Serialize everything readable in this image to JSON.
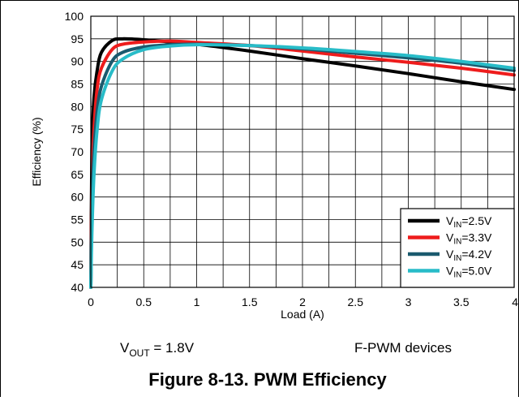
{
  "chart_data": {
    "type": "line",
    "xlabel": "Load (A)",
    "ylabel": "Efficiency (%)",
    "xlim": [
      0,
      4
    ],
    "ylim": [
      40,
      100
    ],
    "x_ticks": [
      "0",
      "0.5",
      "1",
      "1.5",
      "2",
      "2.5",
      "3",
      "3.5",
      "4"
    ],
    "y_ticks": [
      "40",
      "45",
      "50",
      "55",
      "60",
      "65",
      "70",
      "75",
      "80",
      "85",
      "90",
      "95",
      "100"
    ],
    "grid": true,
    "legend_position": "bottom-right",
    "series": [
      {
        "name": "VIN=2.5V",
        "sub": "IN",
        "value_label": "=2.5V",
        "color": "#000000",
        "points": [
          [
            0.0,
            40
          ],
          [
            0.01,
            70
          ],
          [
            0.03,
            82
          ],
          [
            0.06,
            88
          ],
          [
            0.1,
            92
          ],
          [
            0.2,
            94.6
          ],
          [
            0.3,
            95.0
          ],
          [
            0.5,
            94.8
          ],
          [
            0.75,
            94.3
          ],
          [
            1.0,
            93.8
          ],
          [
            1.5,
            92.3
          ],
          [
            2.0,
            90.6
          ],
          [
            2.5,
            89.0
          ],
          [
            3.0,
            87.3
          ],
          [
            3.5,
            85.5
          ],
          [
            4.0,
            83.8
          ]
        ]
      },
      {
        "name": "VIN=3.3V",
        "sub": "IN",
        "value_label": "=3.3V",
        "color": "#ee1c1c",
        "points": [
          [
            0.0,
            40
          ],
          [
            0.01,
            62
          ],
          [
            0.03,
            75
          ],
          [
            0.06,
            84
          ],
          [
            0.1,
            88.5
          ],
          [
            0.2,
            92.6
          ],
          [
            0.3,
            93.8
          ],
          [
            0.5,
            94.3
          ],
          [
            0.75,
            94.5
          ],
          [
            1.0,
            94.2
          ],
          [
            1.5,
            93.5
          ],
          [
            2.0,
            92.3
          ],
          [
            2.5,
            91.0
          ],
          [
            3.0,
            89.8
          ],
          [
            3.5,
            88.5
          ],
          [
            4.0,
            87.0
          ]
        ]
      },
      {
        "name": "VIN=4.2V",
        "sub": "IN",
        "value_label": "=4.2V",
        "color": "#1a5a6e",
        "points": [
          [
            0.0,
            40
          ],
          [
            0.01,
            57
          ],
          [
            0.03,
            70
          ],
          [
            0.06,
            79
          ],
          [
            0.1,
            84.5
          ],
          [
            0.2,
            90.0
          ],
          [
            0.3,
            92.0
          ],
          [
            0.5,
            93.2
          ],
          [
            0.75,
            93.7
          ],
          [
            1.0,
            93.8
          ],
          [
            1.5,
            93.5
          ],
          [
            2.0,
            92.8
          ],
          [
            2.5,
            91.8
          ],
          [
            3.0,
            90.8
          ],
          [
            3.5,
            89.6
          ],
          [
            4.0,
            88.0
          ]
        ]
      },
      {
        "name": "VIN=5.0V",
        "sub": "IN",
        "value_label": "=5.0V",
        "color": "#28bcc8",
        "points": [
          [
            0.0,
            40
          ],
          [
            0.01,
            52
          ],
          [
            0.03,
            65
          ],
          [
            0.06,
            75
          ],
          [
            0.1,
            81.5
          ],
          [
            0.2,
            87.8
          ],
          [
            0.3,
            90.5
          ],
          [
            0.5,
            92.6
          ],
          [
            0.75,
            93.4
          ],
          [
            1.0,
            93.7
          ],
          [
            1.5,
            93.5
          ],
          [
            2.0,
            93.0
          ],
          [
            2.5,
            92.2
          ],
          [
            3.0,
            91.3
          ],
          [
            3.5,
            90.0
          ],
          [
            4.0,
            88.5
          ]
        ]
      }
    ]
  },
  "annotations": {
    "vout_main": "V",
    "vout_sub": "OUT",
    "vout_rest": " = 1.8V",
    "devices": "F-PWM devices"
  },
  "caption": "Figure 8-13. PWM Efficiency"
}
